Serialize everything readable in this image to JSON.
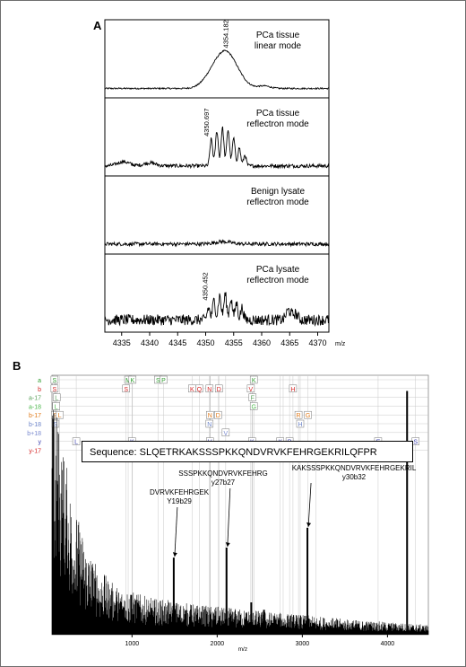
{
  "chart_data": [
    {
      "id": "A",
      "type": "line",
      "panel_label": "A",
      "xlabel": "m/z",
      "ylabel": "",
      "xlim": [
        4332,
        4372
      ],
      "x_ticks": [
        4335,
        4340,
        4345,
        4350,
        4355,
        4360,
        4365,
        4370
      ],
      "grid": false,
      "subplots": [
        {
          "name": "PCa tissue linear mode",
          "label_lines": [
            "PCa tissue",
            "linear mode"
          ],
          "peak_annotation": "4354.182",
          "peak_x": 4354.182,
          "noise": 0.012,
          "peaks": [
            [
              4353.5,
              0.62,
              3.0
            ],
            [
              4350.5,
              0.05,
              2.0
            ],
            [
              4360.5,
              0.04,
              1.5
            ]
          ]
        },
        {
          "name": "PCa tissue reflectron mode",
          "label_lines": [
            "PCa tissue",
            "reflectron mode"
          ],
          "peak_annotation": "4350.697",
          "peak_x": 4350.697,
          "noise": 0.03,
          "peaks": [
            [
              4351.0,
              0.45,
              0.35
            ],
            [
              4352.0,
              0.58,
              0.35
            ],
            [
              4353.0,
              0.64,
              0.35
            ],
            [
              4354.0,
              0.6,
              0.35
            ],
            [
              4355.0,
              0.46,
              0.35
            ],
            [
              4356.0,
              0.3,
              0.35
            ],
            [
              4357.0,
              0.18,
              0.35
            ],
            [
              4335.3,
              0.07,
              1.5
            ],
            [
              4340.0,
              0.05,
              1.5
            ]
          ]
        },
        {
          "name": "Benign lysate reflectron mode",
          "label_lines": [
            "Benign lysate",
            "reflectron mode"
          ],
          "peak_annotation": "",
          "peak_x": null,
          "noise": 0.03,
          "peaks": [
            [
              4353.0,
              0.04,
              2.0
            ]
          ]
        },
        {
          "name": "PCa lysate reflectron mode",
          "label_lines": [
            "PCa lysate",
            "reflectron mode"
          ],
          "peak_annotation": "4350.452",
          "peak_x": 4350.452,
          "noise": 0.09,
          "peaks": [
            [
              4350.5,
              0.2,
              0.35
            ],
            [
              4351.5,
              0.32,
              0.35
            ],
            [
              4352.5,
              0.4,
              0.35
            ],
            [
              4353.5,
              0.42,
              0.35
            ],
            [
              4354.5,
              0.36,
              0.35
            ],
            [
              4355.5,
              0.28,
              0.35
            ],
            [
              4356.5,
              0.2,
              0.35
            ],
            [
              4364.8,
              0.16,
              0.6
            ],
            [
              4366.0,
              0.1,
              0.6
            ]
          ]
        }
      ]
    },
    {
      "id": "B",
      "type": "bar",
      "panel_label": "B",
      "xlabel": "m/z",
      "ylabel": "",
      "xlim": [
        60,
        4480
      ],
      "x_ticks": [
        1000,
        2000,
        3000,
        4000
      ],
      "grid": false,
      "sequence_text": "Sequence: SLQETRKAKSSSPKKQNDVRVKFEHRGEKRILQFPR",
      "ion_rows": [
        {
          "label": "a",
          "color": "#2e9d2e"
        },
        {
          "label": "b",
          "color": "#d42323"
        },
        {
          "label": "a-17",
          "color": "#5aa05a"
        },
        {
          "label": "a-18",
          "color": "#4db84d"
        },
        {
          "label": "b-17",
          "color": "#e07a1a"
        },
        {
          "label": "b-18",
          "color": "#6a82c8"
        },
        {
          "label": "b+18",
          "color": "#7a8acf"
        },
        {
          "label": "y",
          "color": "#3a3fae"
        },
        {
          "label": "y-17",
          "color": "#d42323"
        }
      ],
      "ion_markers": [
        {
          "row": 0,
          "text": "S",
          "x": 90
        },
        {
          "row": 0,
          "text": "M",
          "x": 955
        },
        {
          "row": 0,
          "text": "K",
          "x": 1005
        },
        {
          "row": 0,
          "text": "S",
          "x": 1305
        },
        {
          "row": 0,
          "text": "P",
          "x": 1370
        },
        {
          "row": 0,
          "text": "K",
          "x": 2430
        },
        {
          "row": 1,
          "text": "S",
          "x": 90
        },
        {
          "row": 1,
          "text": "S",
          "x": 930
        },
        {
          "row": 1,
          "text": "K",
          "x": 1705
        },
        {
          "row": 1,
          "text": "Q",
          "x": 1790
        },
        {
          "row": 1,
          "text": "N",
          "x": 1910
        },
        {
          "row": 1,
          "text": "D",
          "x": 2020
        },
        {
          "row": 1,
          "text": "V",
          "x": 2395
        },
        {
          "row": 1,
          "text": "H",
          "x": 2890
        },
        {
          "row": 2,
          "text": "L",
          "x": 115
        },
        {
          "row": 2,
          "text": "F",
          "x": 2415
        },
        {
          "row": 3,
          "text": "L",
          "x": 110
        },
        {
          "row": 3,
          "text": "G",
          "x": 2430
        },
        {
          "row": 4,
          "text": "S",
          "x": 95
        },
        {
          "row": 4,
          "text": "L",
          "x": 150
        },
        {
          "row": 4,
          "text": "N",
          "x": 1915
        },
        {
          "row": 4,
          "text": "D",
          "x": 2010
        },
        {
          "row": 4,
          "text": "R",
          "x": 2955
        },
        {
          "row": 4,
          "text": "G",
          "x": 3065
        },
        {
          "row": 5,
          "text": "S",
          "x": 100
        },
        {
          "row": 5,
          "text": "N",
          "x": 1910
        },
        {
          "row": 5,
          "text": "H",
          "x": 2975
        },
        {
          "row": 6,
          "text": "V",
          "x": 2100
        },
        {
          "row": 7,
          "text": "L",
          "x": 345
        },
        {
          "row": 7,
          "text": "K",
          "x": 1000
        },
        {
          "row": 7,
          "text": "V",
          "x": 1915
        },
        {
          "row": 7,
          "text": "K",
          "x": 2410
        },
        {
          "row": 7,
          "text": "K",
          "x": 2740
        },
        {
          "row": 7,
          "text": "P",
          "x": 2850
        },
        {
          "row": 7,
          "text": "E",
          "x": 3890
        },
        {
          "row": 7,
          "text": "S",
          "x": 4330
        },
        {
          "row": 8,
          "text": "V",
          "x": 1920
        },
        {
          "row": 8,
          "text": "K",
          "x": 2775
        },
        {
          "row": 8,
          "text": "S",
          "x": 3160
        }
      ],
      "noise_envelope": [
        [
          60,
          0.95
        ],
        [
          120,
          0.9
        ],
        [
          200,
          0.75
        ],
        [
          300,
          0.55
        ],
        [
          450,
          0.38
        ],
        [
          600,
          0.27
        ],
        [
          800,
          0.2
        ],
        [
          1200,
          0.15
        ],
        [
          1800,
          0.12
        ],
        [
          2400,
          0.1
        ],
        [
          3000,
          0.08
        ],
        [
          3600,
          0.06
        ],
        [
          4480,
          0.04
        ]
      ],
      "major_peaks": [
        {
          "x": 4230,
          "y": 0.98,
          "label_lines": []
        },
        {
          "x": 3060,
          "y": 0.43,
          "label_lines": [
            "KAKSSSPKKQNDVRVKFEHRGEKRIL",
            "y30b32"
          ]
        },
        {
          "x": 2110,
          "y": 0.35,
          "label_lines": [
            "SSSPKKQNDVRVKFEHRG",
            "y27b27"
          ]
        },
        {
          "x": 1490,
          "y": 0.31,
          "label_lines": [
            "DVRVKFEHRGEK",
            "Y19b29"
          ]
        },
        {
          "x": 990,
          "y": 0.16,
          "label_lines": []
        },
        {
          "x": 2400,
          "y": 0.13,
          "label_lines": []
        },
        {
          "x": 2550,
          "y": 0.1,
          "label_lines": []
        }
      ]
    }
  ]
}
